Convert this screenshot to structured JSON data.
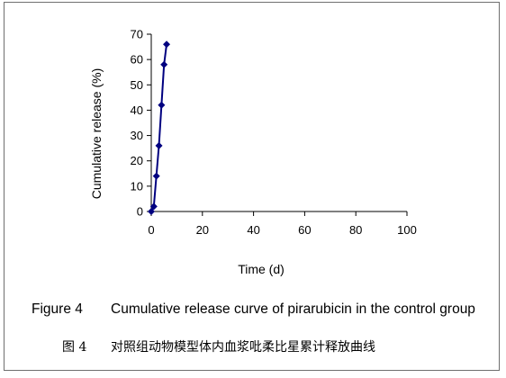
{
  "chart_data": {
    "type": "line",
    "xlabel": "Time (d)",
    "ylabel": "Cumulative release (%)",
    "xlim": [
      0,
      100
    ],
    "ylim": [
      0,
      70
    ],
    "x_ticks": [
      0,
      20,
      40,
      60,
      80,
      100
    ],
    "y_ticks": [
      0,
      10,
      20,
      30,
      40,
      50,
      60,
      70
    ],
    "grid": false,
    "legend": "none",
    "series": [
      {
        "color": "#000080",
        "marker": "diamond",
        "points": [
          {
            "x": 0,
            "y": 0
          },
          {
            "x": 1,
            "y": 2
          },
          {
            "x": 2,
            "y": 14
          },
          {
            "x": 3,
            "y": 26
          },
          {
            "x": 4,
            "y": 42
          },
          {
            "x": 5,
            "y": 58
          },
          {
            "x": 6,
            "y": 66
          }
        ]
      }
    ]
  },
  "caption": {
    "en_number": "Figure 4",
    "en_text": "Cumulative release curve of pirarubicin in the control group",
    "zh_number": "图 4",
    "zh_text": "对照组动物模型体内血浆吡柔比星累计释放曲线"
  }
}
